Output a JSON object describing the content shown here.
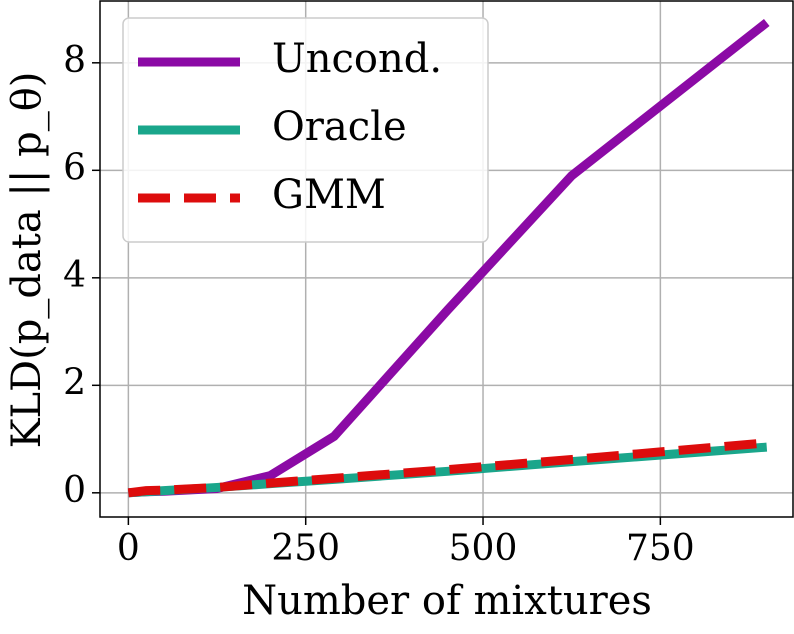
{
  "chart_data": {
    "type": "line",
    "xlabel": "Number of mixtures",
    "ylabel": "KLD(p_data || p_θ)",
    "x": [
      0,
      25,
      50,
      125,
      200,
      290,
      450,
      625,
      900
    ],
    "series": [
      {
        "name": "Uncond.",
        "color": "#8b0aa5",
        "dash": false,
        "values": [
          0,
          0.02,
          0.03,
          0.08,
          0.32,
          1.05,
          3.4,
          5.9,
          8.75
        ]
      },
      {
        "name": "Oracle",
        "color": "#1aa68b",
        "dash": false,
        "values": [
          0,
          0.02,
          0.04,
          0.1,
          0.17,
          0.25,
          0.4,
          0.58,
          0.85
        ]
      },
      {
        "name": "GMM",
        "color": "#dd0c0c",
        "dash": true,
        "values": [
          0,
          0.04,
          0.05,
          0.1,
          0.18,
          0.27,
          0.43,
          0.62,
          0.93
        ]
      }
    ],
    "xlim": [
      -40,
      937
    ],
    "ylim": [
      -0.45,
      9.15
    ],
    "xticks": [
      0,
      250,
      500,
      750
    ],
    "yticks": [
      0,
      2,
      4,
      6,
      8
    ],
    "grid": true,
    "legend": "upper left"
  }
}
